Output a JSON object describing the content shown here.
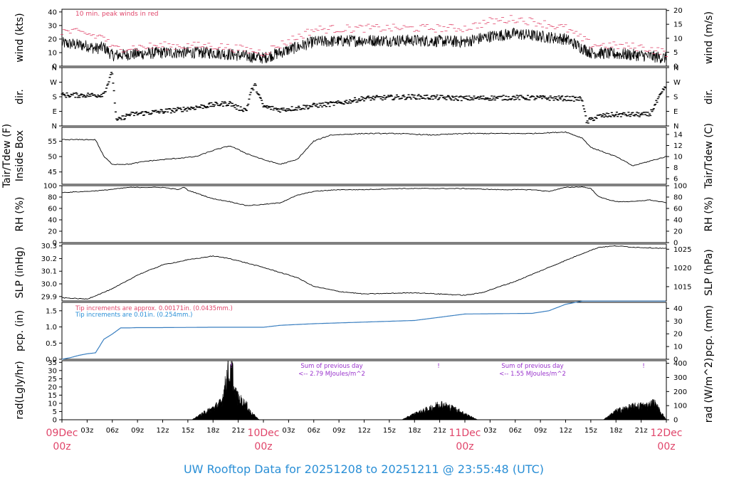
{
  "colors": {
    "accent_red": "#e0456a",
    "accent_blue": "#2a8fd6",
    "precip_line": "#3a7fc0",
    "radiation_text": "#9933cc",
    "trace": "#000000"
  },
  "footer": {
    "title": "UW Rooftop Data for 20251208  to  20251211 @ 23:55:48  (UTC)"
  },
  "x_axis": {
    "ticks": [
      "03z",
      "06z",
      "09z",
      "12z",
      "15z",
      "18z",
      "21z",
      "03z",
      "06z",
      "09z",
      "12z",
      "15z",
      "18z",
      "21z",
      "03z",
      "06z",
      "09z",
      "12z",
      "15z",
      "18z",
      "21z"
    ],
    "day_labels": [
      {
        "day": "09Dec",
        "time": "00z"
      },
      {
        "day": "10Dec",
        "time": "00z"
      },
      {
        "day": "11Dec",
        "time": "00z"
      },
      {
        "day": "12Dec",
        "time": "00z"
      }
    ]
  },
  "chart_data": [
    {
      "type": "line",
      "panel": "wind",
      "ylabel_left": "wind (kts)",
      "ylabel_right": "wind (m/s)",
      "ylim": [
        0,
        42
      ],
      "left_ticks": [
        "0",
        "10",
        "20",
        "30",
        "40"
      ],
      "right_ticks": [
        "0",
        "5",
        "10",
        "15",
        "20"
      ],
      "annotation": "10 min. peak winds in red",
      "series": [
        {
          "role": "trace",
          "hours": [
            0,
            3,
            4,
            5,
            6,
            9,
            12,
            18,
            21,
            24,
            30,
            36,
            42,
            48,
            51,
            54,
            57,
            60,
            63,
            66,
            69,
            72
          ],
          "values": [
            17,
            15,
            13,
            14,
            8,
            9,
            10,
            10,
            8,
            6,
            18,
            19,
            19,
            18,
            22,
            24,
            22,
            20,
            10,
            9,
            8,
            6
          ]
        },
        {
          "role": "peak",
          "hours": [
            0,
            3,
            4,
            5,
            6,
            9,
            12,
            18,
            21,
            24,
            30,
            36,
            42,
            48,
            51,
            54,
            57,
            60,
            63,
            66,
            69,
            72
          ],
          "values": [
            26,
            24,
            22,
            22,
            13,
            14,
            15,
            15,
            13,
            10,
            27,
            28,
            28,
            28,
            33,
            35,
            32,
            28,
            16,
            15,
            14,
            10
          ]
        }
      ]
    },
    {
      "type": "scatter",
      "panel": "dir",
      "ylabel_left": "dir.",
      "ylabel_right": "dir.",
      "ylim": [
        0,
        360
      ],
      "left_ticks": [
        "N",
        "E",
        "S",
        "W",
        "N"
      ],
      "right_ticks": [
        "N",
        "E",
        "S",
        "W",
        "N"
      ],
      "series": [
        {
          "role": "trace",
          "hours": [
            0,
            4.5,
            5,
            6,
            6.5,
            8,
            10,
            12,
            14,
            16,
            18,
            20,
            21,
            22,
            22.5,
            23,
            24,
            26,
            28,
            30,
            33,
            36,
            42,
            48,
            54,
            60,
            62,
            62.5,
            63,
            64,
            66,
            70,
            72
          ],
          "values": [
            190,
            190,
            200,
            330,
            30,
            70,
            80,
            90,
            100,
            115,
            130,
            140,
            110,
            100,
            210,
            250,
            120,
            100,
            110,
            125,
            140,
            170,
            180,
            170,
            175,
            170,
            165,
            20,
            40,
            60,
            70,
            70,
            250
          ]
        }
      ]
    },
    {
      "type": "line",
      "panel": "temperature",
      "ylabel_left": "Tair/Tdew (F)\nInside Box",
      "ylabel_right": "Tair/Tdew (C)",
      "ylim": [
        41,
        59.5
      ],
      "left_ticks": [
        "45",
        "50",
        "55"
      ],
      "right_ticks": [
        "6",
        "8",
        "10",
        "12",
        "14"
      ],
      "series": [
        {
          "hours": [
            0,
            4,
            5,
            6,
            8,
            10,
            12,
            14,
            16,
            18,
            20,
            22,
            24,
            26,
            28,
            30,
            32,
            36,
            40,
            44,
            48,
            52,
            56,
            60,
            62,
            63,
            64,
            66,
            68,
            70,
            72
          ],
          "values": [
            55.5,
            55.5,
            50,
            47.5,
            47.5,
            48.5,
            49,
            49.5,
            50,
            52,
            53.5,
            51,
            49,
            47.5,
            49,
            55,
            57,
            57.5,
            57.5,
            57,
            57.5,
            57.5,
            57.5,
            58,
            56,
            53,
            52,
            50,
            47,
            48.5,
            50
          ]
        }
      ]
    },
    {
      "type": "line",
      "panel": "humidity",
      "ylabel_left": "RH (%)",
      "ylabel_right": "RH (%)",
      "ylim": [
        0,
        100
      ],
      "left_ticks": [
        "0",
        "20",
        "40",
        "60",
        "80",
        "100"
      ],
      "right_ticks": [
        "0",
        "20",
        "40",
        "60",
        "80",
        "100"
      ],
      "series": [
        {
          "hours": [
            0,
            3,
            5,
            8,
            12,
            14,
            14.5,
            15,
            18,
            20,
            22,
            24,
            26,
            28,
            30,
            33,
            36,
            40,
            44,
            48,
            52,
            56,
            58,
            60,
            62,
            63,
            64,
            66,
            68,
            70,
            72
          ],
          "values": [
            88,
            90,
            92,
            97,
            97,
            93,
            98,
            92,
            77,
            72,
            65,
            67,
            70,
            83,
            90,
            93,
            93,
            95,
            95,
            95,
            93,
            93,
            90,
            97,
            98,
            95,
            80,
            72,
            72,
            75,
            70
          ]
        }
      ]
    },
    {
      "type": "line",
      "panel": "pressure",
      "ylabel_left": "SLP (inHg)",
      "ylabel_right": "SLP (hPa)",
      "ylim": [
        29.865,
        30.315
      ],
      "left_ticks": [
        "29.9",
        "30.0",
        "30.1",
        "30.2",
        "30.3"
      ],
      "right_ticks": [
        "1015",
        "1020",
        "1025"
      ],
      "series": [
        {
          "hours": [
            0,
            3,
            6,
            9,
            12,
            15,
            18,
            20,
            24,
            28,
            30,
            33,
            36,
            42,
            48,
            50,
            54,
            58,
            62,
            64,
            66,
            68,
            72
          ],
          "values": [
            29.89,
            29.88,
            29.96,
            30.07,
            30.15,
            30.19,
            30.22,
            30.2,
            30.13,
            30.05,
            29.98,
            29.94,
            29.92,
            29.93,
            29.91,
            29.93,
            30.02,
            30.13,
            30.24,
            30.29,
            30.3,
            30.29,
            30.28
          ]
        }
      ]
    },
    {
      "type": "line",
      "panel": "precipitation",
      "ylabel_left": "pcp. (in)",
      "ylabel_right": "pcp. (mm)",
      "ylim": [
        0,
        1.76
      ],
      "left_ticks": [
        "0.0",
        "0.5",
        "1.0",
        "1.5"
      ],
      "right_ticks": [
        "0",
        "10",
        "20",
        "30",
        "40"
      ],
      "annotations": [
        "Tip increments are approx. 0.00171in. (0.0435mm.)",
        "Tip increments are 0.01in. (0.254mm.)"
      ],
      "series": [
        {
          "hours": [
            0,
            1,
            2,
            3,
            4,
            5,
            6,
            7,
            8,
            9,
            12,
            18,
            24,
            26,
            30,
            36,
            42,
            48,
            52,
            56,
            58,
            60,
            62,
            72
          ],
          "values": [
            0,
            0.05,
            0.12,
            0.17,
            0.2,
            0.62,
            0.78,
            0.97,
            0.97,
            0.98,
            0.98,
            0.99,
            0.99,
            1.05,
            1.1,
            1.15,
            1.2,
            1.4,
            1.41,
            1.42,
            1.5,
            1.7,
            1.8,
            1.8
          ]
        }
      ]
    },
    {
      "type": "area",
      "panel": "radiation",
      "ylabel_left": "rad(Lgly/hr)",
      "ylabel_right": "rad (W/m^2)",
      "ylim": [
        0,
        36
      ],
      "left_ticks": [
        "0",
        "5",
        "10",
        "15",
        "20",
        "25",
        "30",
        "35"
      ],
      "right_ticks": [
        "0",
        "100",
        "200",
        "300",
        "400"
      ],
      "annotations": [
        {
          "lines": [
            "Sum of previous day",
            "<-- 2.79 MJoules/m^2"
          ]
        },
        {
          "lines": [
            "Sum of previous day",
            "<-- 1.55 MJoules/m^2"
          ]
        }
      ],
      "marker": "!",
      "series": [
        {
          "hours": [
            0,
            15.5,
            17,
            18,
            19,
            19.5,
            19.8,
            20,
            20.3,
            20.5,
            21,
            22,
            22.5,
            23.5,
            24,
            40.5,
            42,
            44,
            45,
            46,
            47,
            48,
            49.5,
            64.5,
            66,
            68,
            70,
            70.5,
            71,
            72
          ],
          "values": [
            0,
            0,
            5,
            8,
            12,
            25,
            35,
            28,
            36,
            20,
            15,
            10,
            5,
            0,
            0,
            0,
            4,
            8,
            11,
            9,
            7,
            4,
            0,
            0,
            6,
            9,
            10,
            12,
            8,
            0
          ]
        }
      ]
    }
  ]
}
